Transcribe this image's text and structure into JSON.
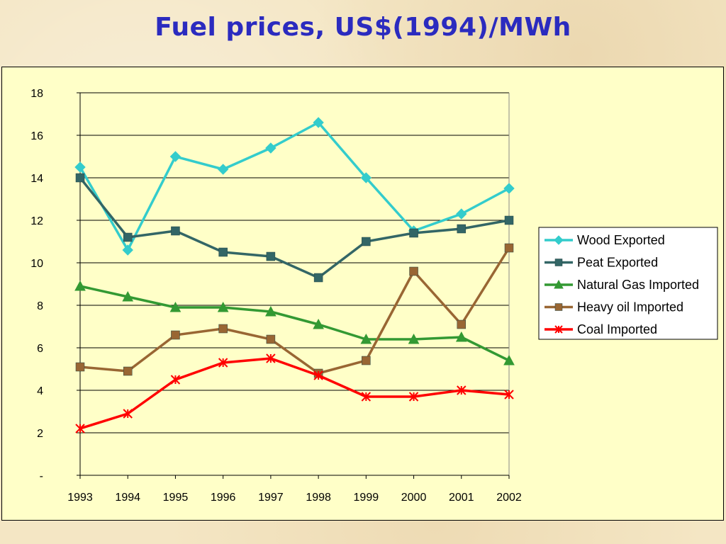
{
  "slide": {
    "title": "Fuel prices, US$(1994)/MWh"
  },
  "chart_data": {
    "type": "line",
    "title": "",
    "xlabel": "",
    "ylabel": "",
    "x": [
      "1993",
      "1994",
      "1995",
      "1996",
      "1997",
      "1998",
      "1999",
      "2000",
      "2001",
      "2002"
    ],
    "ylim": [
      0,
      18
    ],
    "yticks": [
      0,
      2,
      4,
      6,
      8,
      10,
      12,
      14,
      16,
      18
    ],
    "ytick_labels": [
      "-",
      "2",
      "4",
      "6",
      "8",
      "10",
      "12",
      "14",
      "16",
      "18"
    ],
    "grid": "horizontal",
    "legend_position": "right",
    "series": [
      {
        "name": "Wood Exported",
        "color": "#33cccc",
        "marker": "diamond",
        "values": [
          14.5,
          10.6,
          15.0,
          14.4,
          15.4,
          16.6,
          14.0,
          11.5,
          12.3,
          13.5
        ]
      },
      {
        "name": "Peat Exported",
        "color": "#336666",
        "marker": "square",
        "values": [
          14.0,
          11.2,
          11.5,
          10.5,
          10.3,
          9.3,
          11.0,
          11.4,
          11.6,
          12.0
        ]
      },
      {
        "name": "Natural Gas Imported",
        "color": "#339933",
        "marker": "triangle",
        "values": [
          8.9,
          8.4,
          7.9,
          7.9,
          7.7,
          7.1,
          6.4,
          6.4,
          6.5,
          5.4
        ]
      },
      {
        "name": "Heavy oil Imported",
        "color": "#996633",
        "marker": "square",
        "values": [
          5.1,
          4.9,
          6.6,
          6.9,
          6.4,
          4.8,
          5.4,
          9.6,
          7.1,
          10.7
        ]
      },
      {
        "name": "Coal Imported",
        "color": "#ff0000",
        "marker": "star",
        "values": [
          2.2,
          2.9,
          4.5,
          5.3,
          5.5,
          4.7,
          3.7,
          3.7,
          4.0,
          3.8
        ]
      }
    ]
  }
}
